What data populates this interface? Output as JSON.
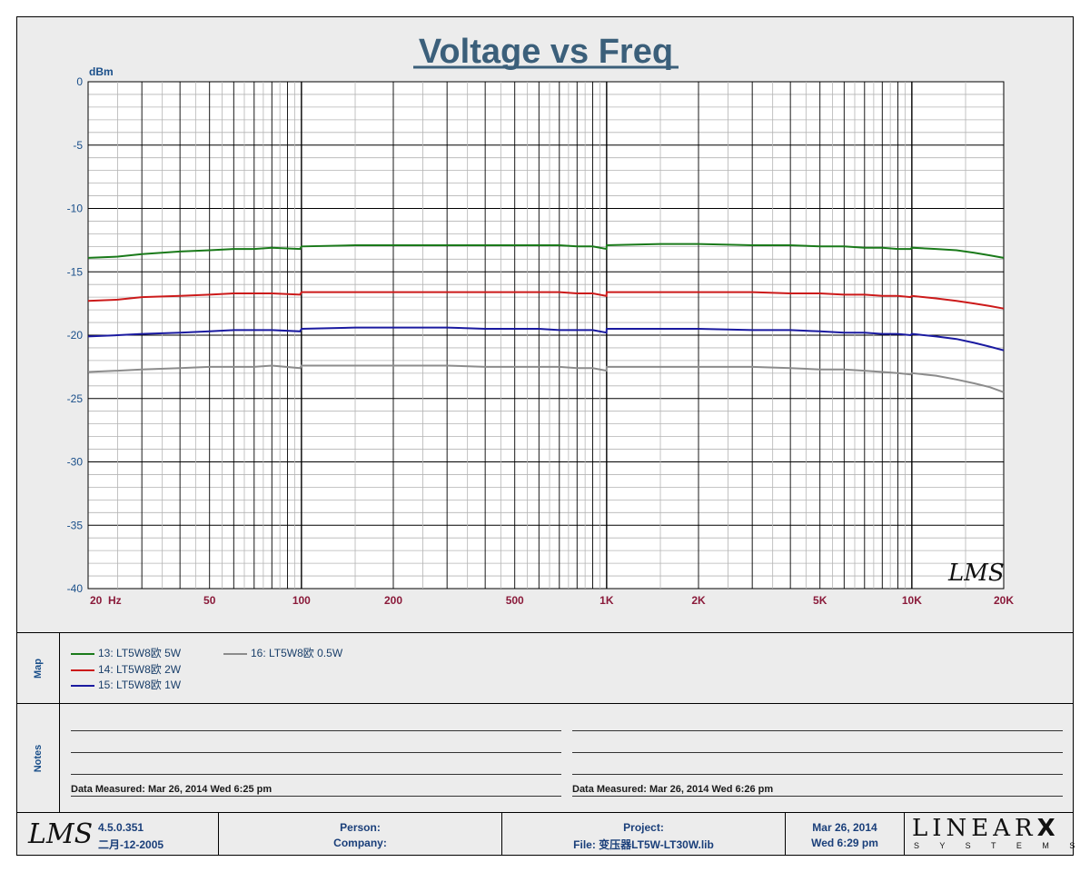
{
  "chart_data": {
    "type": "line",
    "title": "Voltage vs Freq",
    "ylabel": "dBm",
    "xlabel": "Hz",
    "xscale": "log",
    "xlim": [
      20,
      20000
    ],
    "ylim": [
      -40,
      0
    ],
    "yticks": [
      "0",
      "-5",
      "-10",
      "-15",
      "-20",
      "-25",
      "-30",
      "-35",
      "-40"
    ],
    "xticks": [
      {
        "v": 20,
        "label": "20"
      },
      {
        "v": 50,
        "label": "50"
      },
      {
        "v": 100,
        "label": "100"
      },
      {
        "v": 200,
        "label": "200"
      },
      {
        "v": 500,
        "label": "500"
      },
      {
        "v": 1000,
        "label": "1K"
      },
      {
        "v": 2000,
        "label": "2K"
      },
      {
        "v": 5000,
        "label": "5K"
      },
      {
        "v": 10000,
        "label": "10K"
      },
      {
        "v": 20000,
        "label": "20K"
      }
    ],
    "grid": true,
    "legend": "below",
    "x": [
      20,
      25,
      30,
      40,
      50,
      60,
      70,
      80,
      99,
      100,
      150,
      200,
      300,
      400,
      500,
      600,
      700,
      800,
      900,
      999,
      1000,
      1500,
      2000,
      3000,
      4000,
      5000,
      6000,
      7000,
      8000,
      9000,
      9900,
      10000,
      12000,
      14000,
      16000,
      18000,
      20000
    ],
    "series": [
      {
        "name": "13: LT5W8欧 5W",
        "color": "#1a7a1a",
        "values": [
          -13.9,
          -13.8,
          -13.6,
          -13.4,
          -13.3,
          -13.2,
          -13.2,
          -13.1,
          -13.2,
          -13.0,
          -12.9,
          -12.9,
          -12.9,
          -12.9,
          -12.9,
          -12.9,
          -12.9,
          -13.0,
          -13.0,
          -13.2,
          -12.9,
          -12.8,
          -12.8,
          -12.9,
          -12.9,
          -13.0,
          -13.0,
          -13.1,
          -13.1,
          -13.2,
          -13.2,
          -13.1,
          -13.2,
          -13.3,
          -13.5,
          -13.7,
          -13.9
        ]
      },
      {
        "name": "14: LT5W8欧 2W",
        "color": "#cc1a1a",
        "values": [
          -17.3,
          -17.2,
          -17.0,
          -16.9,
          -16.8,
          -16.7,
          -16.7,
          -16.7,
          -16.8,
          -16.6,
          -16.6,
          -16.6,
          -16.6,
          -16.6,
          -16.6,
          -16.6,
          -16.6,
          -16.7,
          -16.7,
          -16.9,
          -16.6,
          -16.6,
          -16.6,
          -16.6,
          -16.7,
          -16.7,
          -16.8,
          -16.8,
          -16.9,
          -16.9,
          -17.0,
          -16.9,
          -17.1,
          -17.3,
          -17.5,
          -17.7,
          -17.9
        ]
      },
      {
        "name": "15: LT5W8欧 1W",
        "color": "#1a1aa0",
        "values": [
          -20.1,
          -20.0,
          -19.9,
          -19.8,
          -19.7,
          -19.6,
          -19.6,
          -19.6,
          -19.7,
          -19.5,
          -19.4,
          -19.4,
          -19.4,
          -19.5,
          -19.5,
          -19.5,
          -19.6,
          -19.6,
          -19.6,
          -19.8,
          -19.5,
          -19.5,
          -19.5,
          -19.6,
          -19.6,
          -19.7,
          -19.8,
          -19.8,
          -19.9,
          -19.9,
          -20.0,
          -19.9,
          -20.1,
          -20.3,
          -20.6,
          -20.9,
          -21.2
        ]
      },
      {
        "name": "16: LT5W8欧 0.5W",
        "color": "#8c8c8c",
        "values": [
          -22.9,
          -22.8,
          -22.7,
          -22.6,
          -22.5,
          -22.5,
          -22.5,
          -22.4,
          -22.6,
          -22.4,
          -22.4,
          -22.4,
          -22.4,
          -22.5,
          -22.5,
          -22.5,
          -22.5,
          -22.6,
          -22.6,
          -22.8,
          -22.5,
          -22.5,
          -22.5,
          -22.5,
          -22.6,
          -22.7,
          -22.7,
          -22.8,
          -22.9,
          -23.0,
          -23.1,
          -23.0,
          -23.2,
          -23.5,
          -23.8,
          -24.1,
          -24.5
        ]
      }
    ]
  },
  "watermark": "LMS",
  "map": {
    "label": "Map"
  },
  "notes": {
    "label": "Notes",
    "left": "Data Measured: Mar 26, 2014  Wed  6:25 pm",
    "right": "Data Measured: Mar 26, 2014  Wed  6:26 pm"
  },
  "footer": {
    "logo": "LMS",
    "version": "4.5.0.351",
    "build_date": "二月-12-2005",
    "person": "Person:",
    "company": "Company:",
    "project": "Project:",
    "file": "File: 变压器LT5W-LT30W.lib",
    "date": "Mar 26, 2014",
    "time": "Wed  6:29 pm",
    "brand": "LINEAR",
    "brand_x": "X",
    "brand_sub": "S Y S T E M S"
  }
}
